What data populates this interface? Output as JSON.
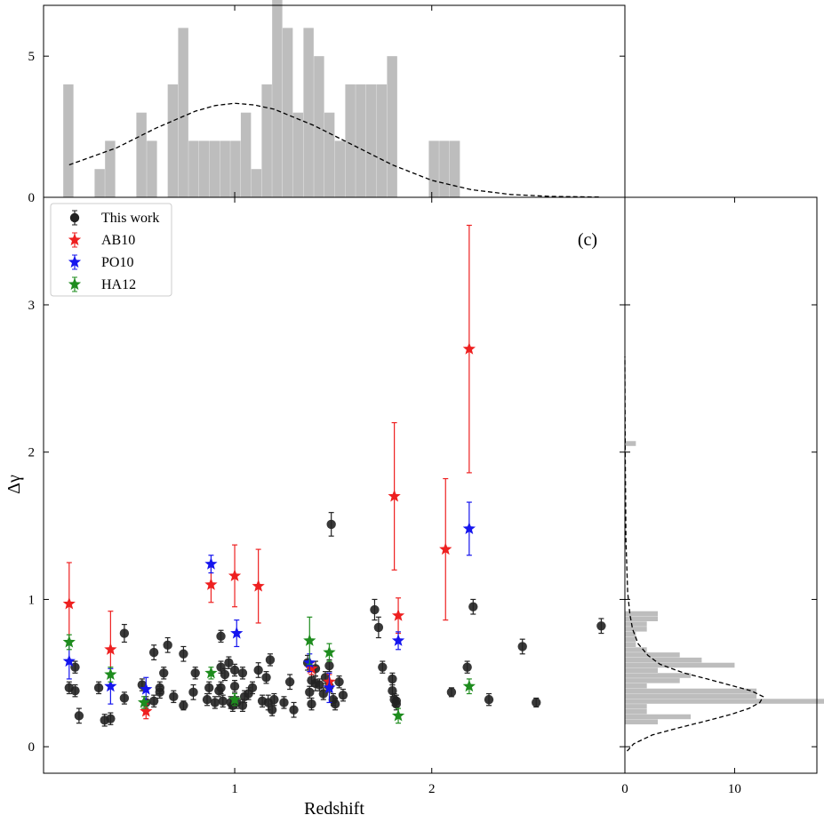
{
  "chart_data": {
    "type": "scatter",
    "panel_label": "(c)",
    "xlabel": "Redshift",
    "ylabel": "Δγ",
    "xlim": [
      0.03,
      2.98
    ],
    "ylim": [
      -0.18,
      3.73
    ],
    "xticks": [
      "1",
      "2"
    ],
    "yticks": [
      "0",
      "1",
      "2",
      "3"
    ],
    "legend_position": "upper-left",
    "colors": {
      "this_work": "#222222",
      "ab10": "#ee2020",
      "po10": "#1515ee",
      "ha12": "#1e8c1e",
      "hist": "#bdbdbd"
    },
    "series": [
      {
        "name": "This work",
        "marker": "circle",
        "key": "this_work",
        "points": [
          [
            0.16,
            0.4,
            0.04
          ],
          [
            0.19,
            0.54,
            0.04
          ],
          [
            0.19,
            0.38,
            0.04
          ],
          [
            0.21,
            0.21,
            0.05
          ],
          [
            0.31,
            0.4,
            0.04
          ],
          [
            0.34,
            0.18,
            0.04
          ],
          [
            0.37,
            0.19,
            0.04
          ],
          [
            0.44,
            0.77,
            0.06
          ],
          [
            0.44,
            0.33,
            0.04
          ],
          [
            0.53,
            0.42,
            0.04
          ],
          [
            0.55,
            0.3,
            0.04
          ],
          [
            0.59,
            0.31,
            0.04
          ],
          [
            0.59,
            0.64,
            0.05
          ],
          [
            0.62,
            0.37,
            0.04
          ],
          [
            0.62,
            0.4,
            0.04
          ],
          [
            0.64,
            0.5,
            0.04
          ],
          [
            0.66,
            0.69,
            0.05
          ],
          [
            0.69,
            0.34,
            0.04
          ],
          [
            0.74,
            0.28,
            0.03
          ],
          [
            0.74,
            0.63,
            0.05
          ],
          [
            0.79,
            0.37,
            0.05
          ],
          [
            0.8,
            0.5,
            0.04
          ],
          [
            0.86,
            0.32,
            0.04
          ],
          [
            0.87,
            0.4,
            0.04
          ],
          [
            0.9,
            0.3,
            0.04
          ],
          [
            0.92,
            0.38,
            0.04
          ],
          [
            0.93,
            0.4,
            0.04
          ],
          [
            0.93,
            0.54,
            0.04
          ],
          [
            0.93,
            0.75,
            0.04
          ],
          [
            0.94,
            0.31,
            0.04
          ],
          [
            0.95,
            0.49,
            0.04
          ],
          [
            0.97,
            0.57,
            0.04
          ],
          [
            0.98,
            0.3,
            0.04
          ],
          [
            0.99,
            0.28,
            0.04
          ],
          [
            1.0,
            0.41,
            0.04
          ],
          [
            1.0,
            0.52,
            0.04
          ],
          [
            1.01,
            0.3,
            0.04
          ],
          [
            1.04,
            0.28,
            0.04
          ],
          [
            1.04,
            0.5,
            0.04
          ],
          [
            1.05,
            0.34,
            0.04
          ],
          [
            1.07,
            0.36,
            0.04
          ],
          [
            1.09,
            0.4,
            0.04
          ],
          [
            1.12,
            0.52,
            0.05
          ],
          [
            1.14,
            0.31,
            0.04
          ],
          [
            1.16,
            0.47,
            0.04
          ],
          [
            1.17,
            0.3,
            0.05
          ],
          [
            1.18,
            0.59,
            0.04
          ],
          [
            1.19,
            0.25,
            0.04
          ],
          [
            1.2,
            0.32,
            0.04
          ],
          [
            1.25,
            0.3,
            0.04
          ],
          [
            1.28,
            0.44,
            0.05
          ],
          [
            1.3,
            0.25,
            0.05
          ],
          [
            1.37,
            0.57,
            0.05
          ],
          [
            1.38,
            0.37,
            0.04
          ],
          [
            1.39,
            0.45,
            0.04
          ],
          [
            1.39,
            0.29,
            0.04
          ],
          [
            1.41,
            0.53,
            0.05
          ],
          [
            1.41,
            0.43,
            0.05
          ],
          [
            1.43,
            0.42,
            0.04
          ],
          [
            1.45,
            0.36,
            0.04
          ],
          [
            1.46,
            0.47,
            0.04
          ],
          [
            1.48,
            0.41,
            0.04
          ],
          [
            1.48,
            0.55,
            0.04
          ],
          [
            1.49,
            1.51,
            0.08
          ],
          [
            1.5,
            0.32,
            0.04
          ],
          [
            1.51,
            0.29,
            0.04
          ],
          [
            1.53,
            0.44,
            0.04
          ],
          [
            1.55,
            0.35,
            0.04
          ],
          [
            1.71,
            0.93,
            0.07
          ],
          [
            1.73,
            0.81,
            0.07
          ],
          [
            1.75,
            0.54,
            0.04
          ],
          [
            1.8,
            0.38,
            0.04
          ],
          [
            1.8,
            0.46,
            0.04
          ],
          [
            1.81,
            0.32,
            0.04
          ],
          [
            1.82,
            0.29,
            0.04
          ],
          [
            1.82,
            0.31,
            0.04
          ],
          [
            2.1,
            0.37,
            0.03
          ],
          [
            2.18,
            0.54,
            0.04
          ],
          [
            2.21,
            0.95,
            0.05
          ],
          [
            2.29,
            0.32,
            0.04
          ],
          [
            2.46,
            0.68,
            0.05
          ],
          [
            2.53,
            0.3,
            0.03
          ],
          [
            2.86,
            0.82,
            0.05
          ]
        ]
      },
      {
        "name": "AB10",
        "marker": "star",
        "key": "ab10",
        "points": [
          [
            0.16,
            0.97,
            0.28
          ],
          [
            0.37,
            0.66,
            0.26
          ],
          [
            0.55,
            0.24,
            0.05
          ],
          [
            0.88,
            1.1,
            0.12
          ],
          [
            1.0,
            1.16,
            0.21
          ],
          [
            1.12,
            1.09,
            0.25
          ],
          [
            1.39,
            0.53,
            0.04
          ],
          [
            1.48,
            0.44,
            0.05
          ],
          [
            1.81,
            1.7,
            0.5
          ],
          [
            1.83,
            0.89,
            0.12
          ],
          [
            2.07,
            1.34,
            0.48
          ],
          [
            2.19,
            2.7,
            0.84
          ]
        ]
      },
      {
        "name": "PO10",
        "marker": "star",
        "key": "po10",
        "points": [
          [
            0.16,
            0.58,
            0.12
          ],
          [
            0.37,
            0.41,
            0.12
          ],
          [
            0.55,
            0.39,
            0.08
          ],
          [
            0.88,
            1.24,
            0.06
          ],
          [
            1.01,
            0.77,
            0.09
          ],
          [
            1.38,
            0.57,
            0.06
          ],
          [
            1.48,
            0.4,
            0.1
          ],
          [
            1.83,
            0.72,
            0.06
          ],
          [
            2.19,
            1.48,
            0.18
          ]
        ]
      },
      {
        "name": "HA12",
        "marker": "star",
        "key": "ha12",
        "points": [
          [
            0.16,
            0.71,
            0.05
          ],
          [
            0.37,
            0.49,
            0.05
          ],
          [
            0.54,
            0.3,
            0.04
          ],
          [
            0.88,
            0.5,
            0.04
          ],
          [
            1.0,
            0.32,
            0.04
          ],
          [
            1.38,
            0.72,
            0.16
          ],
          [
            1.48,
            0.64,
            0.06
          ],
          [
            1.83,
            0.21,
            0.05
          ],
          [
            2.19,
            0.41,
            0.05
          ]
        ]
      }
    ],
    "top_histogram": {
      "yticks": [
        "0",
        "5"
      ],
      "ylim": [
        0,
        6.8
      ],
      "bin_start": 0.13,
      "bin_width": 0.053,
      "counts": [
        4,
        0,
        0,
        1,
        2,
        0,
        0,
        3,
        2,
        0,
        4,
        6,
        2,
        2,
        2,
        2,
        2,
        3,
        1,
        4,
        7,
        6,
        3,
        6,
        5,
        3,
        2,
        4,
        4,
        4,
        4,
        5,
        0,
        0,
        0,
        2,
        2,
        2,
        0,
        0,
        0,
        0,
        0,
        0,
        0,
        0,
        0,
        0,
        0,
        0,
        0,
        0,
        0,
        0,
        0,
        0,
        0,
        0,
        0,
        0,
        0,
        0,
        0,
        0,
        0,
        0,
        0,
        0
      ],
      "gauss_x": [
        0.16,
        0.4,
        0.6,
        0.8,
        0.9,
        1.0,
        1.1,
        1.2,
        1.4,
        1.6,
        1.8,
        2.0,
        2.2,
        2.4,
        2.6,
        2.85
      ],
      "gauss_y": [
        1.15,
        1.75,
        2.45,
        3.05,
        3.25,
        3.33,
        3.27,
        3.12,
        2.55,
        1.85,
        1.15,
        0.6,
        0.27,
        0.1,
        0.03,
        0.01
      ]
    },
    "right_histogram": {
      "xticks": [
        "0",
        "10"
      ],
      "xlim": [
        0,
        17.5
      ],
      "bin_start": 0.15,
      "bin_width": 0.035,
      "counts": [
        3,
        6,
        2,
        2,
        19,
        12,
        12,
        2,
        5,
        6,
        3,
        10,
        7,
        5,
        2,
        1,
        1,
        1,
        2,
        2,
        3,
        3,
        0,
        0,
        0,
        0,
        0,
        0,
        0,
        0,
        0,
        0,
        0,
        0,
        0,
        0,
        0,
        0,
        0,
        0,
        0,
        0,
        0,
        0,
        0,
        0,
        0,
        0,
        0,
        0,
        0,
        0,
        0,
        0,
        1
      ],
      "gauss_y": [
        -0.03,
        0.02,
        0.08,
        0.13,
        0.18,
        0.22,
        0.26,
        0.3,
        0.34,
        0.38,
        0.42,
        0.46,
        0.5,
        0.56,
        0.62,
        0.7,
        0.8,
        0.9,
        1.05,
        1.4,
        2.0,
        2.65
      ],
      "gauss_x": [
        0.2,
        0.8,
        2.5,
        5.0,
        7.7,
        9.7,
        11.3,
        12.3,
        12.6,
        11.5,
        9.5,
        7.5,
        5.4,
        3.2,
        2.1,
        1.2,
        0.7,
        0.45,
        0.25,
        0.1,
        0.03,
        0.0
      ]
    }
  }
}
